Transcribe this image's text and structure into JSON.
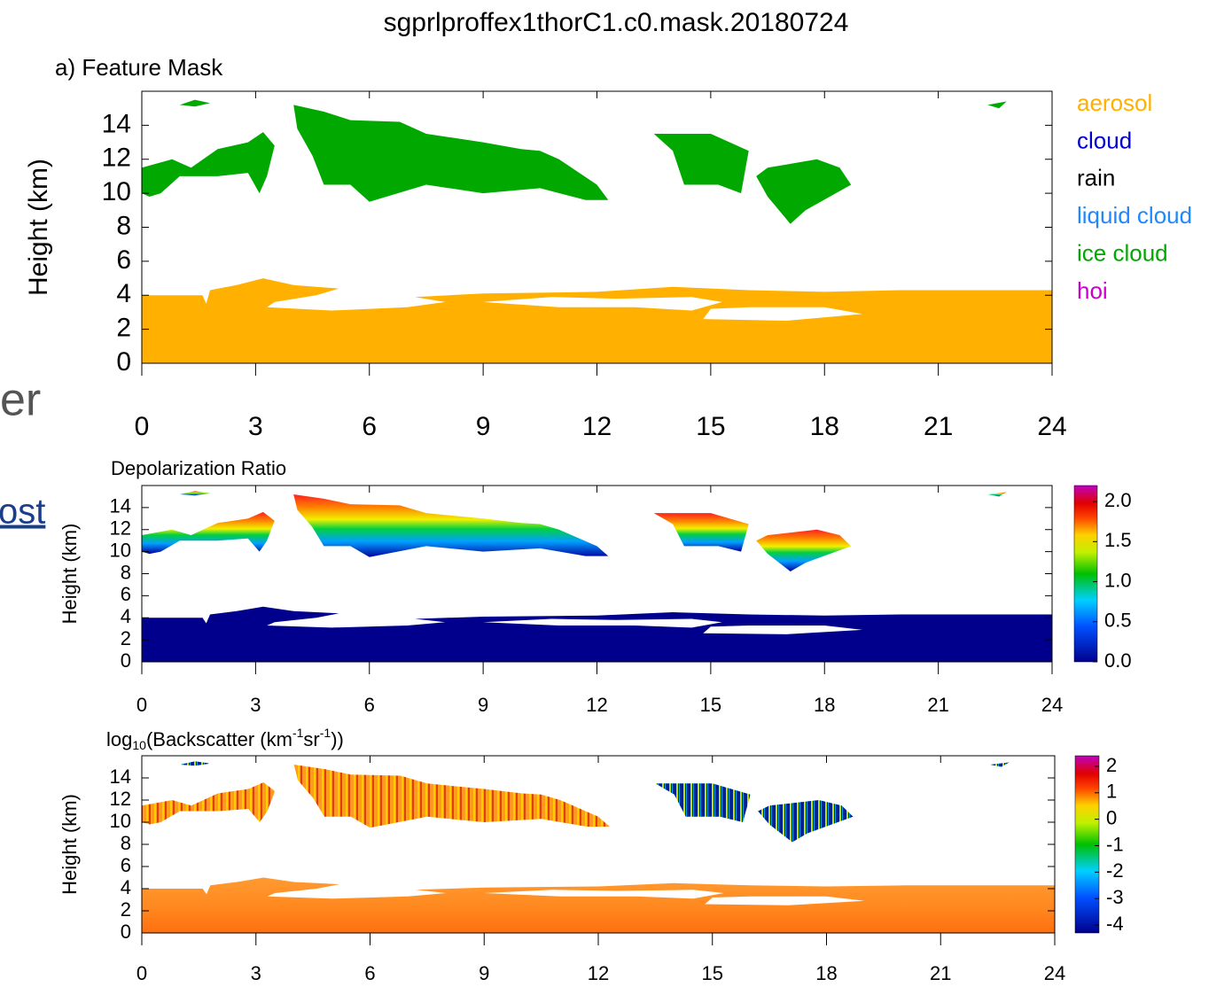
{
  "background_fragments": [
    "er",
    "ost"
  ],
  "chart_data": [
    {
      "type": "mask",
      "title": "sgprlproffex1thorC1.c0.mask.20180724",
      "subtitle": "a) Feature Mask",
      "y_label": "Height (km)",
      "xlim": [
        0,
        24
      ],
      "xticks": [
        0,
        3,
        6,
        9,
        12,
        15,
        18,
        21,
        24
      ],
      "ylim": [
        0,
        16
      ],
      "yticks": [
        0,
        2,
        4,
        6,
        8,
        10,
        12,
        14
      ],
      "legend": [
        {
          "name": "aerosol",
          "color": "#ffb000"
        },
        {
          "name": "cloud",
          "color": "#0000cc"
        },
        {
          "name": "rain",
          "color": "#000000"
        },
        {
          "name": "liquid cloud",
          "color": "#1e88ff"
        },
        {
          "name": "ice cloud",
          "color": "#00a800"
        },
        {
          "name": "hoi",
          "color": "#cc00cc"
        }
      ]
    },
    {
      "type": "depolarization",
      "title": "Depolarization Ratio",
      "y_label": "Height (km)",
      "xlim": [
        0,
        24
      ],
      "xticks": [
        0,
        3,
        6,
        9,
        12,
        15,
        18,
        21,
        24
      ],
      "ylim": [
        0,
        16
      ],
      "yticks": [
        0,
        2,
        4,
        6,
        8,
        10,
        12,
        14
      ],
      "clim": [
        0,
        2.2
      ],
      "cticks": [
        {
          "value": 0,
          "label": "0.0"
        },
        {
          "value": 0.5,
          "label": "0.5"
        },
        {
          "value": 1,
          "label": "1.0"
        },
        {
          "value": 1.5,
          "label": "1.5"
        },
        {
          "value": 2,
          "label": "2.0"
        }
      ]
    },
    {
      "type": "backscatter",
      "title_parts": [
        "log",
        "10",
        "(Backscatter (km",
        "-1",
        "sr",
        "-1",
        "))"
      ],
      "y_label": "Height (km)",
      "xlim": [
        0,
        24
      ],
      "xticks": [
        0,
        3,
        6,
        9,
        12,
        15,
        18,
        21,
        24
      ],
      "ylim": [
        0,
        16
      ],
      "yticks": [
        0,
        2,
        4,
        6,
        8,
        10,
        12,
        14
      ],
      "clim": [
        -4.3,
        2.4
      ],
      "cticks": [
        -4,
        -3,
        -2,
        -1,
        0,
        1,
        2
      ]
    }
  ]
}
